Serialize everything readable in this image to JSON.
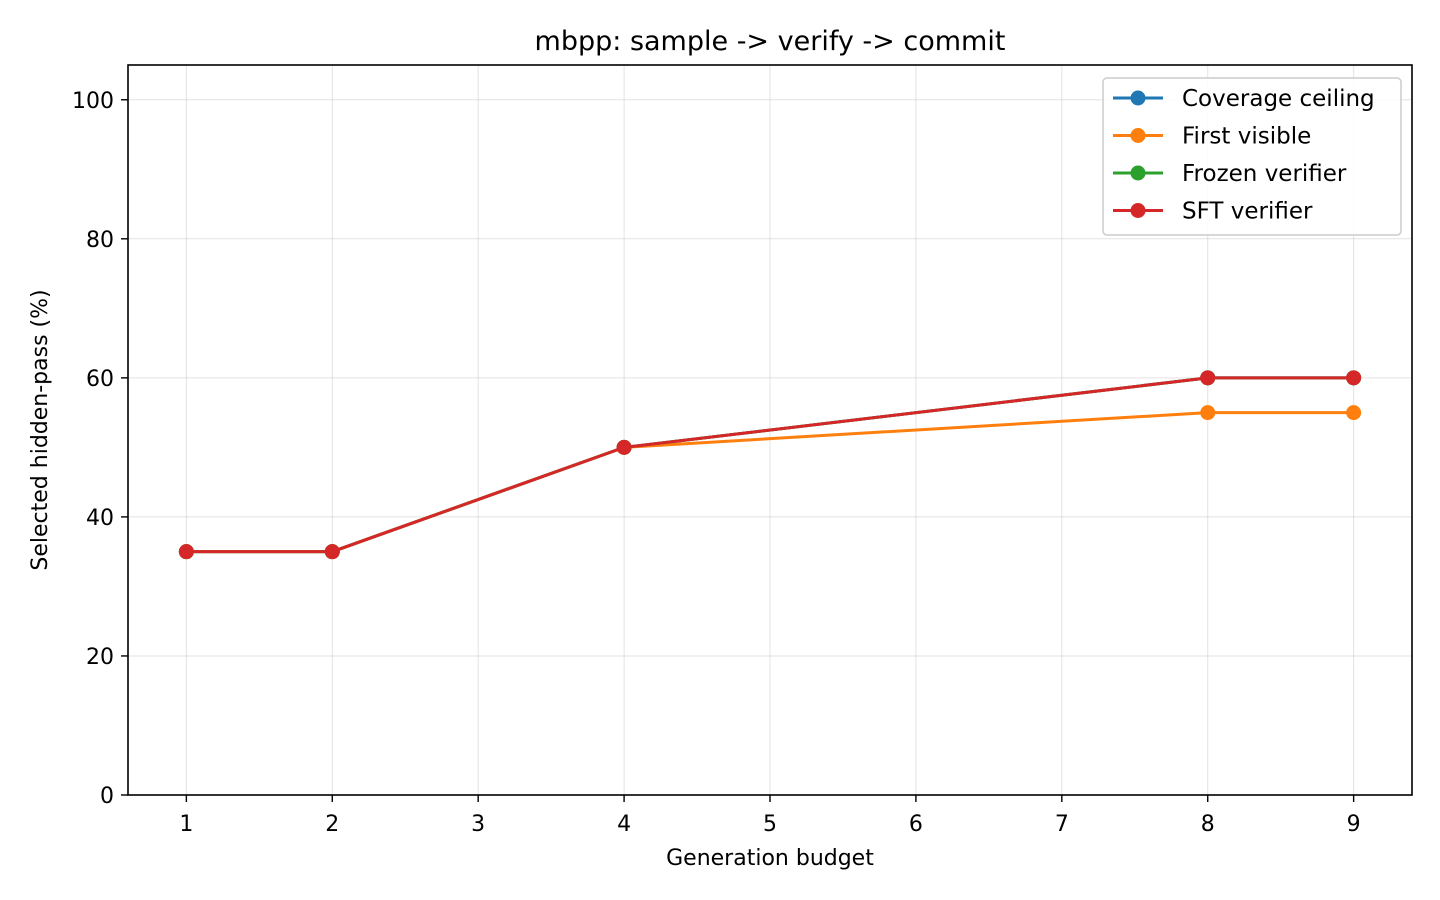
{
  "chart_data": {
    "type": "line",
    "title": "mbpp: sample -> verify -> commit",
    "xlabel": "Generation budget",
    "ylabel": "Selected hidden-pass (%)",
    "x": [
      1,
      2,
      4,
      8,
      9
    ],
    "xlim": [
      0.6,
      9.4
    ],
    "ylim": [
      0,
      105
    ],
    "xticks": [
      1,
      2,
      3,
      4,
      5,
      6,
      7,
      8,
      9
    ],
    "yticks": [
      0,
      20,
      40,
      60,
      80,
      100
    ],
    "grid": true,
    "legend_position": "top-right",
    "series": [
      {
        "name": "Coverage ceiling",
        "color": "#1f77b4",
        "values": [
          35,
          35,
          50,
          60,
          60
        ]
      },
      {
        "name": "First visible",
        "color": "#ff7f0e",
        "values": [
          35,
          35,
          50,
          55,
          55
        ]
      },
      {
        "name": "Frozen verifier",
        "color": "#2ca02c",
        "values": [
          35,
          35,
          50,
          60,
          60
        ]
      },
      {
        "name": "SFT verifier",
        "color": "#d62728",
        "values": [
          35,
          35,
          50,
          60,
          60
        ]
      }
    ]
  }
}
